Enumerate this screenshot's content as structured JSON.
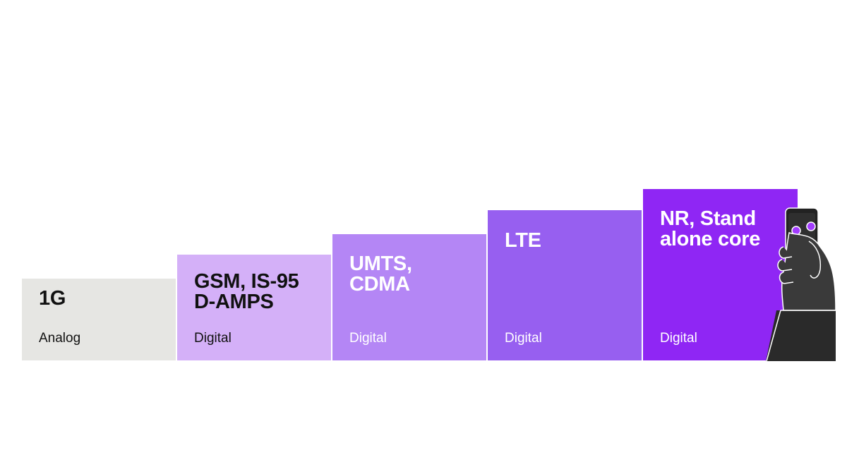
{
  "steps": [
    {
      "title": "1G",
      "subtitle": "Analog",
      "color": "#e6e6e3"
    },
    {
      "title": "GSM, IS-95\nD-AMPS",
      "subtitle": "Digital",
      "color": "#d4b0f8"
    },
    {
      "title": "UMTS,\nCDMA",
      "subtitle": "Digital",
      "color": "#b486f5"
    },
    {
      "title": "LTE",
      "subtitle": "Digital",
      "color": "#975ff0"
    },
    {
      "title": "NR, Stand\nalone core",
      "subtitle": "Digital",
      "color": "#8f26f4"
    }
  ],
  "illustration": {
    "icon": "hand-holding-phone-icon",
    "ink_color": "#222222",
    "accent_color": "#a23bff"
  }
}
